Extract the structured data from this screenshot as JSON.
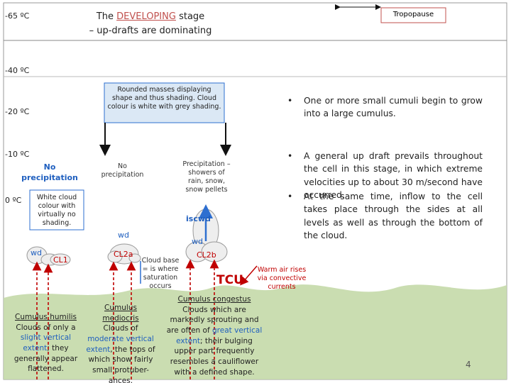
{
  "title": {
    "prefix": "The ",
    "highlight": "DEVELOPING",
    "suffix": " stage",
    "line2": "– up-drafts are dominating"
  },
  "tropopause": "Tropopause",
  "temperatures": [
    "-65 ºC",
    "-40 ºC",
    "-20 ºC",
    "-10 ºC",
    "0 ºC"
  ],
  "callout": "Rounded masses displaying shape and thus shading. Cloud colour is white with grey shading.",
  "bullets": [
    "One or more small cumuli begin to grow into a large cumulus.",
    "A general up draft prevails throughout the cell in this stage, in which extreme velocities up to about 30 m/second have occurred.",
    "At the same time, inflow to the cell takes place through the sides at all levels as well as through the bottom of the cloud."
  ],
  "left_no_precipitation": "No precipitation",
  "cloud_colour_box": "White cloud colour with virtually no shading.",
  "middle_no_precipitation": "No precipitation",
  "precipitation": "Precipitation – showers of rain, snow, snow pellets",
  "labels": {
    "iscwd": "iscwd",
    "wd_left": "wd",
    "wd_middle": "wd",
    "wd_right": "wd",
    "cl1": "CL1",
    "cl2a": "CL2a",
    "cl2b": "CL2b",
    "tcu": "TCU"
  },
  "cloud_base": "Cloud base = is where saturation occurs",
  "warm_air": "Warm air rises via convective currents",
  "descriptions": [
    {
      "heading": "Cumulus humilis",
      "parts": [
        "Clouds of only a ",
        "slight vertical extent",
        "; they generally appear flattened."
      ]
    },
    {
      "heading": "Cumulus mediocris",
      "parts": [
        "Clouds of ",
        "moderate vertical extent",
        ", the tops of which show fairly small protuber-ances."
      ]
    },
    {
      "heading": "Cumulus congestus",
      "parts": [
        "Clouds which are markedly sprouting and are often of ",
        "great vertical extent",
        "; their bulging upper part frequently resembles a cauliflower with a defined shape."
      ]
    }
  ],
  "page_number": "4"
}
